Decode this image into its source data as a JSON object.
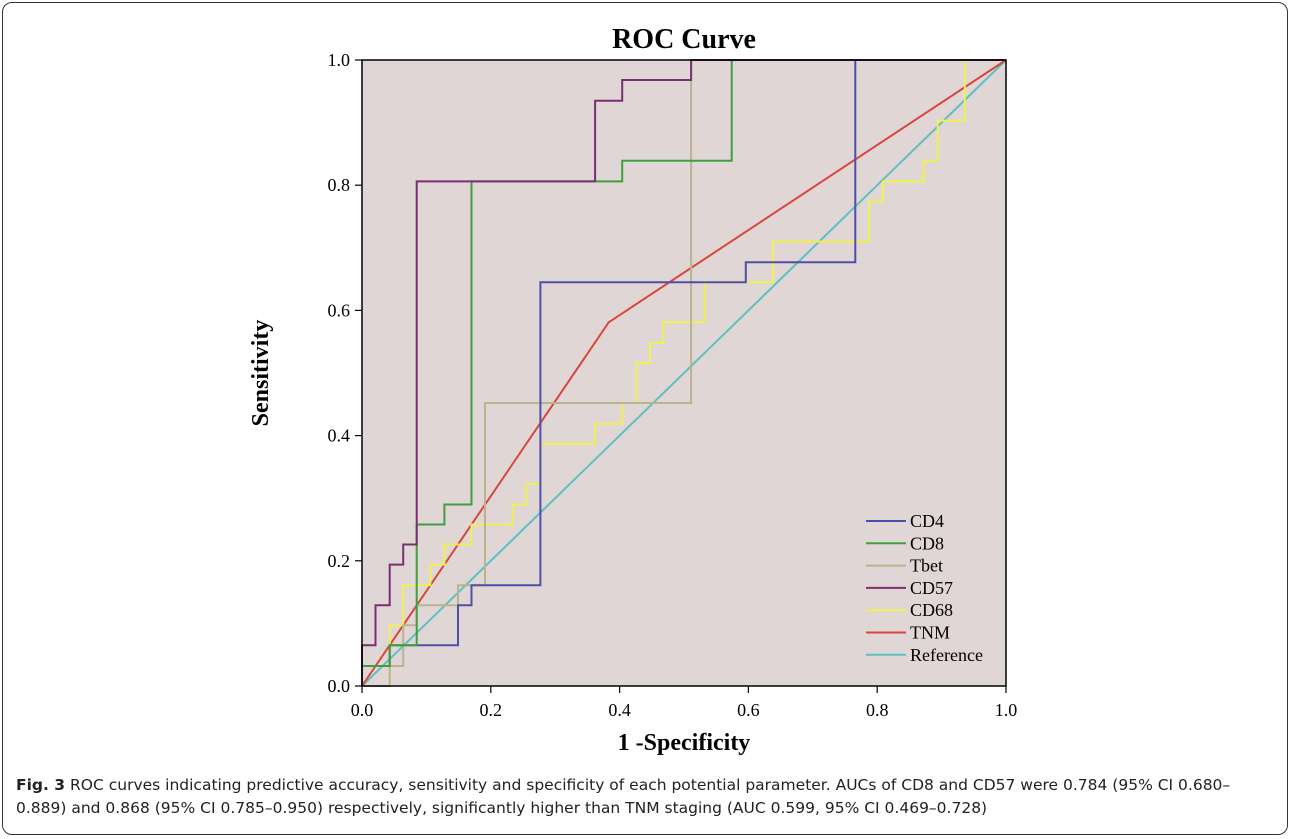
{
  "chart_data": {
    "type": "line",
    "title": "ROC Curve",
    "xlabel": "1 -Specificity",
    "ylabel": "Sensitivity",
    "xlim": [
      0,
      1
    ],
    "ylim": [
      0,
      1
    ],
    "x_ticks": [
      "0.0",
      "0.2",
      "0.4",
      "0.6",
      "0.8",
      "1.0"
    ],
    "y_ticks": [
      "0.0",
      "0.2",
      "0.4",
      "0.6",
      "0.8",
      "1.0"
    ],
    "grid": false,
    "legend_position": "bottom-right",
    "plot_background": "#e0d6d6",
    "series": [
      {
        "name": "CD4",
        "color": "#4f4fa8",
        "points": [
          [
            0,
            0
          ],
          [
            0,
            0.032
          ],
          [
            0.043,
            0.032
          ],
          [
            0.043,
            0.065
          ],
          [
            0.149,
            0.065
          ],
          [
            0.149,
            0.129
          ],
          [
            0.17,
            0.129
          ],
          [
            0.17,
            0.161
          ],
          [
            0.277,
            0.161
          ],
          [
            0.277,
            0.645
          ],
          [
            0.596,
            0.645
          ],
          [
            0.596,
            0.677
          ],
          [
            0.766,
            0.677
          ],
          [
            0.766,
            1.0
          ],
          [
            1,
            1
          ]
        ]
      },
      {
        "name": "CD8",
        "color": "#3f9f3f",
        "points": [
          [
            0,
            0
          ],
          [
            0,
            0.032
          ],
          [
            0.043,
            0.032
          ],
          [
            0.043,
            0.065
          ],
          [
            0.085,
            0.065
          ],
          [
            0.085,
            0.258
          ],
          [
            0.128,
            0.258
          ],
          [
            0.128,
            0.29
          ],
          [
            0.17,
            0.29
          ],
          [
            0.17,
            0.806
          ],
          [
            0.383,
            0.806
          ],
          [
            0.383,
            0.806
          ],
          [
            0.404,
            0.806
          ],
          [
            0.404,
            0.839
          ],
          [
            0.574,
            0.839
          ],
          [
            0.574,
            1.0
          ],
          [
            1,
            1
          ]
        ]
      },
      {
        "name": "Tbet",
        "color": "#b9b38e",
        "points": [
          [
            0,
            0
          ],
          [
            0.043,
            0
          ],
          [
            0.043,
            0.032
          ],
          [
            0.064,
            0.032
          ],
          [
            0.064,
            0.097
          ],
          [
            0.085,
            0.097
          ],
          [
            0.085,
            0.129
          ],
          [
            0.149,
            0.129
          ],
          [
            0.149,
            0.161
          ],
          [
            0.191,
            0.161
          ],
          [
            0.191,
            0.452
          ],
          [
            0.511,
            0.452
          ],
          [
            0.511,
            1.0
          ],
          [
            1,
            1
          ]
        ]
      },
      {
        "name": "CD57",
        "color": "#7a2f72",
        "points": [
          [
            0,
            0
          ],
          [
            0,
            0.065
          ],
          [
            0.021,
            0.065
          ],
          [
            0.021,
            0.129
          ],
          [
            0.043,
            0.129
          ],
          [
            0.043,
            0.194
          ],
          [
            0.064,
            0.194
          ],
          [
            0.064,
            0.226
          ],
          [
            0.085,
            0.226
          ],
          [
            0.085,
            0.806
          ],
          [
            0.362,
            0.806
          ],
          [
            0.362,
            0.935
          ],
          [
            0.404,
            0.935
          ],
          [
            0.404,
            0.968
          ],
          [
            0.447,
            0.968
          ],
          [
            0.447,
            0.968
          ],
          [
            0.511,
            0.968
          ],
          [
            0.511,
            1.0
          ],
          [
            1,
            1
          ]
        ]
      },
      {
        "name": "CD68",
        "color": "#f0f050",
        "points": [
          [
            0,
            0
          ],
          [
            0.043,
            0
          ],
          [
            0.043,
            0.097
          ],
          [
            0.064,
            0.097
          ],
          [
            0.064,
            0.161
          ],
          [
            0.106,
            0.161
          ],
          [
            0.106,
            0.194
          ],
          [
            0.128,
            0.194
          ],
          [
            0.128,
            0.226
          ],
          [
            0.17,
            0.226
          ],
          [
            0.17,
            0.258
          ],
          [
            0.234,
            0.258
          ],
          [
            0.234,
            0.29
          ],
          [
            0.255,
            0.29
          ],
          [
            0.255,
            0.323
          ],
          [
            0.277,
            0.323
          ],
          [
            0.277,
            0.387
          ],
          [
            0.362,
            0.387
          ],
          [
            0.362,
            0.419
          ],
          [
            0.404,
            0.419
          ],
          [
            0.404,
            0.452
          ],
          [
            0.426,
            0.452
          ],
          [
            0.426,
            0.516
          ],
          [
            0.447,
            0.516
          ],
          [
            0.447,
            0.548
          ],
          [
            0.468,
            0.548
          ],
          [
            0.468,
            0.581
          ],
          [
            0.532,
            0.581
          ],
          [
            0.532,
            0.645
          ],
          [
            0.638,
            0.645
          ],
          [
            0.638,
            0.71
          ],
          [
            0.787,
            0.71
          ],
          [
            0.787,
            0.774
          ],
          [
            0.809,
            0.774
          ],
          [
            0.809,
            0.806
          ],
          [
            0.872,
            0.806
          ],
          [
            0.872,
            0.839
          ],
          [
            0.894,
            0.839
          ],
          [
            0.894,
            0.903
          ],
          [
            0.936,
            0.903
          ],
          [
            0.936,
            1.0
          ],
          [
            1,
            1
          ]
        ]
      },
      {
        "name": "TNM",
        "color": "#d9463a",
        "points": [
          [
            0,
            0
          ],
          [
            0.383,
            0.581
          ],
          [
            1,
            1
          ]
        ]
      },
      {
        "name": "Reference",
        "color": "#5ec0c0",
        "points": [
          [
            0,
            0
          ],
          [
            1,
            1
          ]
        ]
      }
    ]
  },
  "caption": {
    "label": "Fig. 3",
    "text": " ROC curves indicating predictive accuracy, sensitivity and specificity of each potential parameter. AUCs of CD8 and CD57 were 0.784 (95% CI 0.680–0.889) and 0.868 (95% CI 0.785–0.950) respectively, significantly higher than TNM staging (AUC 0.599, 95% CI 0.469–0.728)"
  }
}
